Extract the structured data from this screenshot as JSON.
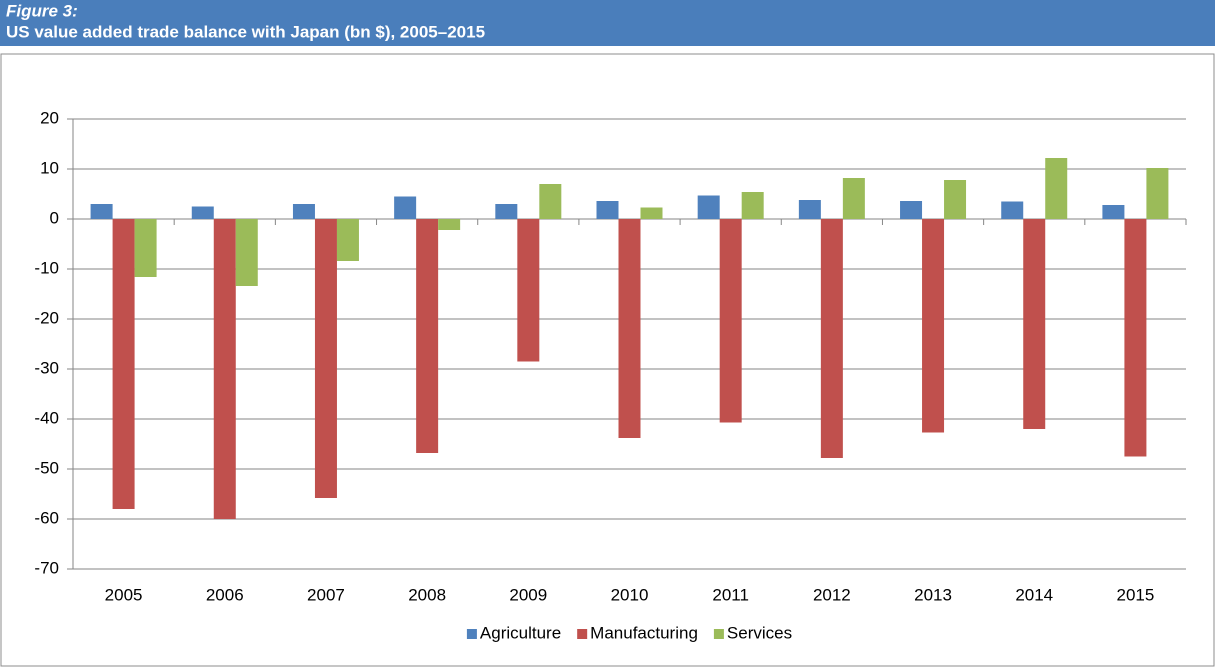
{
  "chart_data": {
    "type": "bar",
    "figure_label": "Figure 3:",
    "title": "US value added trade balance with Japan (bn $), 2005–2015",
    "categories": [
      "2005",
      "2006",
      "2007",
      "2008",
      "2009",
      "2010",
      "2011",
      "2012",
      "2013",
      "2014",
      "2015"
    ],
    "series": [
      {
        "name": "Agriculture",
        "color": "#4f81bd",
        "values": [
          3,
          2.5,
          3,
          4.5,
          3,
          3.6,
          4.7,
          3.8,
          3.6,
          3.5,
          2.8
        ]
      },
      {
        "name": "Manufacturing",
        "color": "#c0504d",
        "values": [
          -58,
          -60,
          -55.8,
          -46.8,
          -28.5,
          -43.8,
          -40.7,
          -47.8,
          -42.7,
          -42,
          -47.5
        ]
      },
      {
        "name": "Services",
        "color": "#9bbb59",
        "values": [
          -11.6,
          -13.4,
          -8.4,
          -2.2,
          7,
          2.3,
          5.4,
          8.2,
          7.8,
          12.2,
          10.2
        ]
      }
    ],
    "ylim": [
      -70,
      20
    ],
    "yticks": [
      -70,
      -60,
      -50,
      -40,
      -30,
      -20,
      -10,
      0,
      10,
      20
    ],
    "grid": true,
    "legend": "bottom"
  }
}
